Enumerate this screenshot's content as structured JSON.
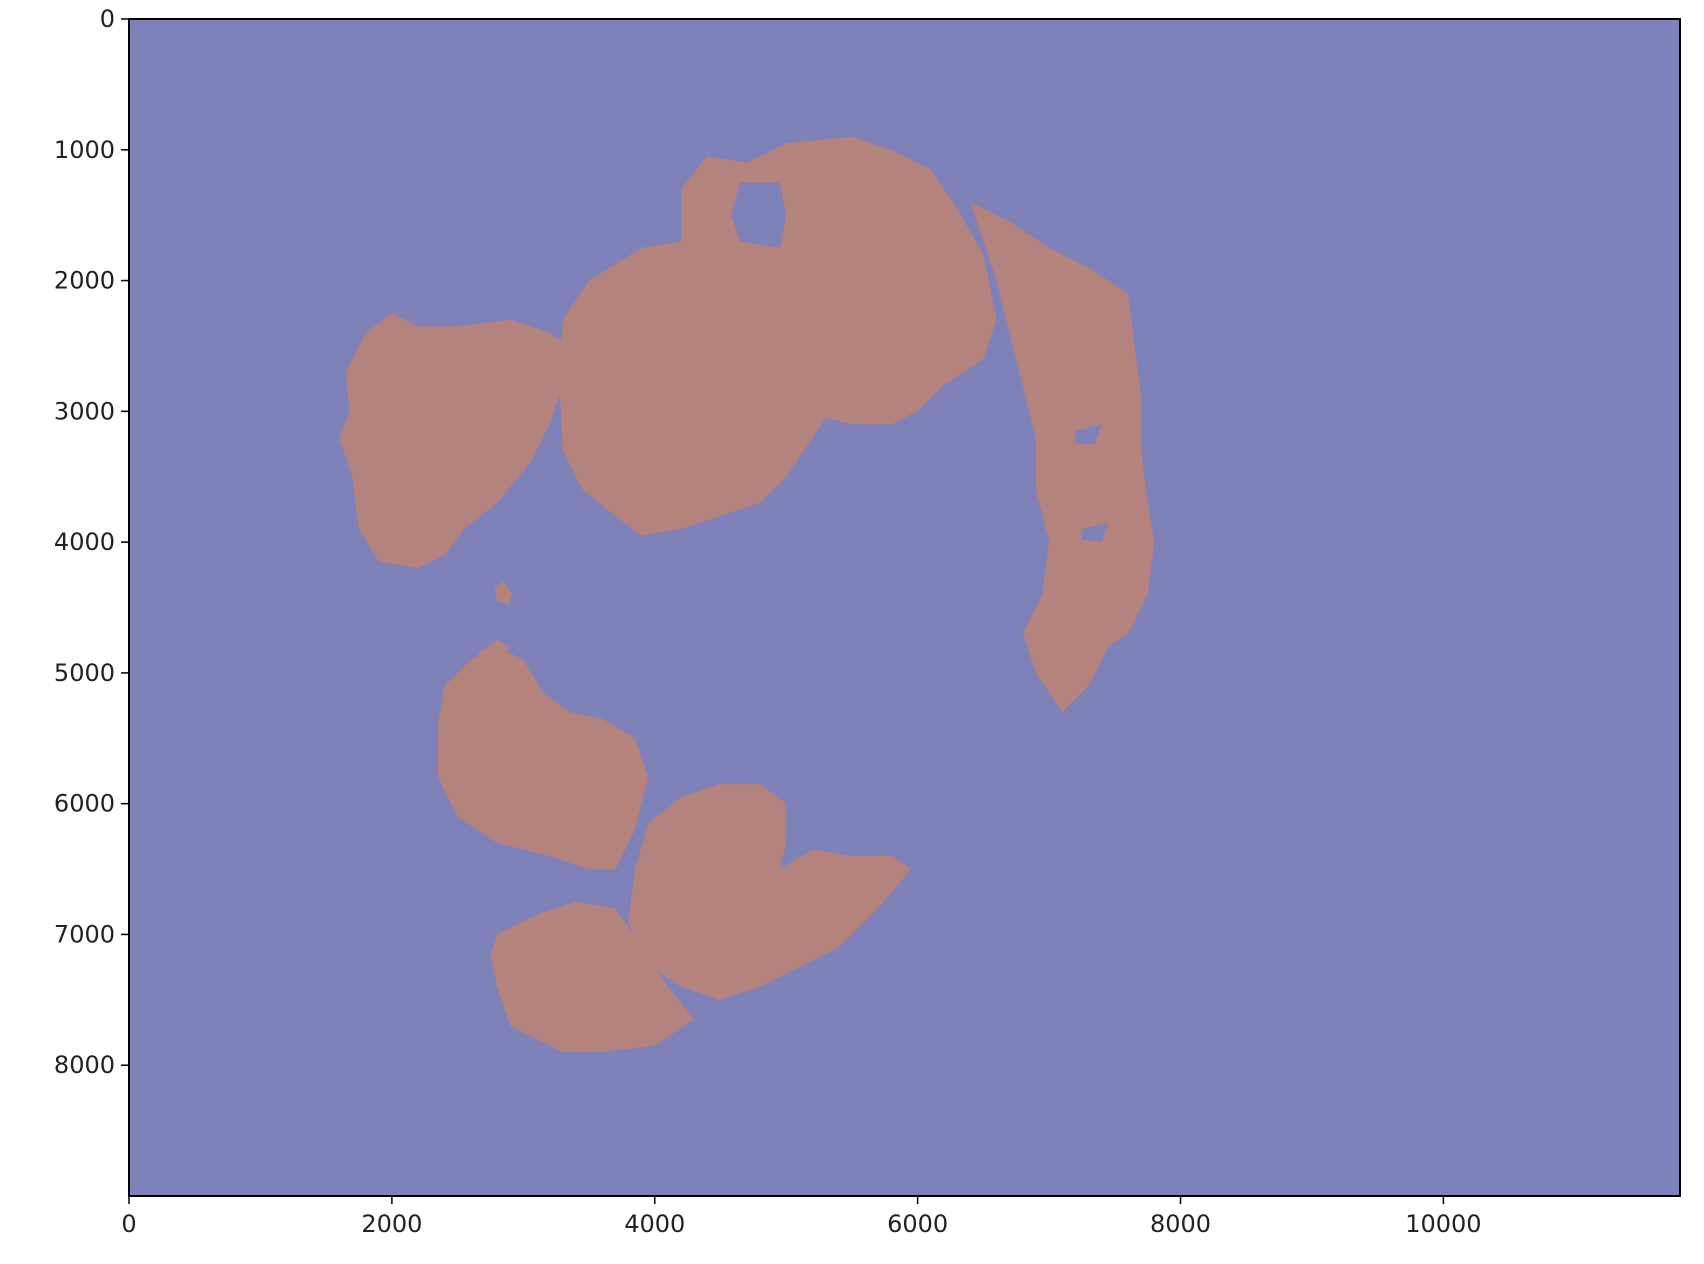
{
  "chart_data": {
    "type": "heatmap",
    "title": "",
    "xlabel": "",
    "ylabel": "",
    "xlim": [
      0,
      11800
    ],
    "ylim": [
      9000,
      0
    ],
    "x_ticks": [
      0,
      2000,
      4000,
      6000,
      8000,
      10000
    ],
    "x_tick_labels": [
      "0",
      "2000",
      "4000",
      "6000",
      "8000",
      "10000"
    ],
    "y_ticks": [
      0,
      1000,
      2000,
      3000,
      4000,
      5000,
      6000,
      7000,
      8000
    ],
    "y_tick_labels": [
      "0",
      "1000",
      "2000",
      "3000",
      "4000",
      "5000",
      "6000",
      "7000",
      "8000"
    ],
    "grid": false,
    "colors": {
      "background": "#7f81b9",
      "foreground": "#b5837d"
    },
    "regions": [
      {
        "name": "top-center-blob",
        "points": [
          [
            3300,
            2300
          ],
          [
            3500,
            2000
          ],
          [
            3900,
            1750
          ],
          [
            4200,
            1700
          ],
          [
            4200,
            1300
          ],
          [
            4400,
            1050
          ],
          [
            4700,
            1100
          ],
          [
            5000,
            950
          ],
          [
            5500,
            900
          ],
          [
            5800,
            1000
          ],
          [
            6100,
            1150
          ],
          [
            6300,
            1450
          ],
          [
            6500,
            1800
          ],
          [
            6600,
            2300
          ],
          [
            6500,
            2600
          ],
          [
            6200,
            2800
          ],
          [
            6000,
            3000
          ],
          [
            5800,
            3100
          ],
          [
            5500,
            3100
          ],
          [
            5300,
            3050
          ],
          [
            5200,
            3200
          ],
          [
            5000,
            3500
          ],
          [
            4800,
            3700
          ],
          [
            4500,
            3800
          ],
          [
            4200,
            3900
          ],
          [
            3900,
            3950
          ],
          [
            3700,
            3800
          ],
          [
            3450,
            3600
          ],
          [
            3300,
            3300
          ],
          [
            3280,
            2900
          ],
          [
            3280,
            2600
          ]
        ]
      },
      {
        "name": "top-left-blob",
        "points": [
          [
            1650,
            2700
          ],
          [
            1800,
            2400
          ],
          [
            2000,
            2250
          ],
          [
            2200,
            2350
          ],
          [
            2500,
            2350
          ],
          [
            2900,
            2300
          ],
          [
            3200,
            2400
          ],
          [
            3350,
            2500
          ],
          [
            3300,
            2800
          ],
          [
            3200,
            3100
          ],
          [
            3050,
            3400
          ],
          [
            2800,
            3700
          ],
          [
            2550,
            3900
          ],
          [
            2400,
            4100
          ],
          [
            2200,
            4200
          ],
          [
            1900,
            4150
          ],
          [
            1750,
            3900
          ],
          [
            1700,
            3500
          ],
          [
            1600,
            3200
          ],
          [
            1680,
            3000
          ]
        ]
      },
      {
        "name": "right-arc-blob",
        "points": [
          [
            6400,
            1400
          ],
          [
            6700,
            1550
          ],
          [
            7000,
            1750
          ],
          [
            7300,
            1900
          ],
          [
            7600,
            2100
          ],
          [
            7650,
            2500
          ],
          [
            7700,
            2900
          ],
          [
            7700,
            3300
          ],
          [
            7750,
            3700
          ],
          [
            7800,
            4000
          ],
          [
            7750,
            4400
          ],
          [
            7600,
            4700
          ],
          [
            7450,
            4800
          ],
          [
            7300,
            5100
          ],
          [
            7100,
            5300
          ],
          [
            6900,
            5000
          ],
          [
            6800,
            4700
          ],
          [
            6950,
            4400
          ],
          [
            7000,
            4000
          ],
          [
            6900,
            3600
          ],
          [
            6900,
            3200
          ],
          [
            6800,
            2800
          ],
          [
            6700,
            2400
          ],
          [
            6600,
            2000
          ],
          [
            6500,
            1700
          ]
        ]
      },
      {
        "name": "bottom-left-blob",
        "points": [
          [
            2400,
            5100
          ],
          [
            2600,
            4900
          ],
          [
            2800,
            4800
          ],
          [
            3000,
            4900
          ],
          [
            3150,
            5150
          ],
          [
            3350,
            5300
          ],
          [
            3600,
            5350
          ],
          [
            3850,
            5500
          ],
          [
            3950,
            5800
          ],
          [
            3850,
            6200
          ],
          [
            3700,
            6500
          ],
          [
            3500,
            6500
          ],
          [
            3200,
            6400
          ],
          [
            2800,
            6300
          ],
          [
            2500,
            6100
          ],
          [
            2350,
            5800
          ],
          [
            2350,
            5400
          ]
        ]
      },
      {
        "name": "bottom-right-blob",
        "points": [
          [
            3950,
            6150
          ],
          [
            4200,
            5950
          ],
          [
            4500,
            5850
          ],
          [
            4800,
            5850
          ],
          [
            5000,
            6000
          ],
          [
            5000,
            6300
          ],
          [
            4950,
            6500
          ],
          [
            5200,
            6350
          ],
          [
            5500,
            6400
          ],
          [
            5800,
            6400
          ],
          [
            5950,
            6500
          ],
          [
            5700,
            6800
          ],
          [
            5400,
            7100
          ],
          [
            5000,
            7300
          ],
          [
            4800,
            7400
          ],
          [
            4500,
            7500
          ],
          [
            4200,
            7400
          ],
          [
            3900,
            7200
          ],
          [
            3800,
            6900
          ],
          [
            3850,
            6500
          ]
        ]
      },
      {
        "name": "bottom-bottom-blob",
        "points": [
          [
            2800,
            7000
          ],
          [
            3100,
            6850
          ],
          [
            3400,
            6750
          ],
          [
            3700,
            6800
          ],
          [
            3900,
            7100
          ],
          [
            4100,
            7400
          ],
          [
            4300,
            7650
          ],
          [
            4000,
            7850
          ],
          [
            3600,
            7900
          ],
          [
            3300,
            7900
          ],
          [
            2900,
            7700
          ],
          [
            2800,
            7400
          ],
          [
            2750,
            7150
          ]
        ]
      },
      {
        "name": "small-speck-blob",
        "points": [
          [
            2780,
            4350
          ],
          [
            2850,
            4300
          ],
          [
            2920,
            4400
          ],
          [
            2880,
            4480
          ],
          [
            2800,
            4450
          ]
        ]
      },
      {
        "name": "small-top-speck-blob",
        "points": [
          [
            2650,
            4850
          ],
          [
            2800,
            4750
          ],
          [
            2900,
            4800
          ],
          [
            2820,
            4900
          ],
          [
            2700,
            4900
          ]
        ]
      }
    ],
    "holes": [
      {
        "name": "top-hole",
        "points": [
          [
            4650,
            1250
          ],
          [
            4950,
            1250
          ],
          [
            5000,
            1500
          ],
          [
            4950,
            1750
          ],
          [
            4650,
            1700
          ],
          [
            4580,
            1500
          ]
        ]
      },
      {
        "name": "right-arc-hole-1",
        "points": [
          [
            7200,
            3150
          ],
          [
            7400,
            3100
          ],
          [
            7350,
            3250
          ],
          [
            7200,
            3250
          ]
        ]
      },
      {
        "name": "right-arc-hole-2",
        "points": [
          [
            7250,
            3900
          ],
          [
            7450,
            3850
          ],
          [
            7400,
            4000
          ],
          [
            7250,
            3980
          ]
        ]
      }
    ]
  }
}
